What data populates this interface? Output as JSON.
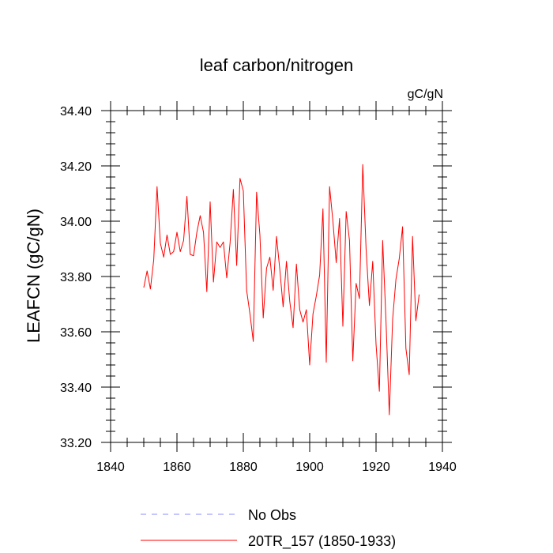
{
  "chart_data": {
    "type": "line",
    "title": "leaf carbon/nitrogen",
    "units_label": "gC/gN",
    "ylabel": "LEAFCN  (gC/gN)",
    "xlabel": "",
    "xlim": [
      1840,
      1940
    ],
    "ylim": [
      33.2,
      34.4
    ],
    "x_ticks": [
      1840,
      1860,
      1880,
      1900,
      1920,
      1940
    ],
    "x_tick_labels": [
      "1840",
      "1860",
      "1880",
      "1900",
      "1920",
      "1940"
    ],
    "y_ticks": [
      33.2,
      33.4,
      33.6,
      33.8,
      34.0,
      34.2,
      34.4
    ],
    "y_tick_labels": [
      "33.20",
      "33.40",
      "33.60",
      "33.80",
      "34.00",
      "34.20",
      "34.40"
    ],
    "grid": false,
    "legend": [
      {
        "label": "No Obs",
        "color": "#8c8cff",
        "style": "dashed"
      },
      {
        "label": "20TR_157 (1850-1933)",
        "color": "#ff0000",
        "style": "solid"
      }
    ],
    "series": [
      {
        "name": "20TR_157 (1850-1933)",
        "color": "#ff0000",
        "x": [
          1850,
          1851,
          1852,
          1853,
          1854,
          1855,
          1856,
          1857,
          1858,
          1859,
          1860,
          1861,
          1862,
          1863,
          1864,
          1865,
          1866,
          1867,
          1868,
          1869,
          1870,
          1871,
          1872,
          1873,
          1874,
          1875,
          1876,
          1877,
          1878,
          1879,
          1880,
          1881,
          1882,
          1883,
          1884,
          1885,
          1886,
          1887,
          1888,
          1889,
          1890,
          1891,
          1892,
          1893,
          1894,
          1895,
          1896,
          1897,
          1898,
          1899,
          1900,
          1901,
          1902,
          1903,
          1904,
          1905,
          1906,
          1907,
          1908,
          1909,
          1910,
          1911,
          1912,
          1913,
          1914,
          1915,
          1916,
          1917,
          1918,
          1919,
          1920,
          1921,
          1922,
          1923,
          1924,
          1925,
          1926,
          1927,
          1928,
          1929,
          1930,
          1931,
          1932,
          1933
        ],
        "y": [
          33.76,
          33.82,
          33.755,
          33.86,
          34.125,
          33.92,
          33.87,
          33.95,
          33.88,
          33.89,
          33.96,
          33.89,
          33.93,
          34.09,
          33.88,
          33.875,
          33.96,
          34.02,
          33.96,
          33.745,
          34.07,
          33.78,
          33.925,
          33.905,
          33.925,
          33.795,
          33.92,
          34.115,
          33.84,
          34.155,
          34.11,
          33.75,
          33.665,
          33.565,
          34.105,
          33.95,
          33.65,
          33.83,
          33.87,
          33.75,
          33.945,
          33.825,
          33.69,
          33.855,
          33.71,
          33.615,
          33.845,
          33.68,
          33.635,
          33.68,
          33.48,
          33.665,
          33.73,
          33.805,
          34.045,
          33.49,
          34.125,
          34.0,
          33.85,
          34.01,
          33.62,
          34.035,
          33.93,
          33.495,
          33.775,
          33.72,
          34.205,
          33.9,
          33.695,
          33.855,
          33.555,
          33.385,
          33.93,
          33.64,
          33.3,
          33.645,
          33.79,
          33.865,
          33.98,
          33.54,
          33.445,
          33.945,
          33.64,
          33.735
        ]
      }
    ]
  }
}
